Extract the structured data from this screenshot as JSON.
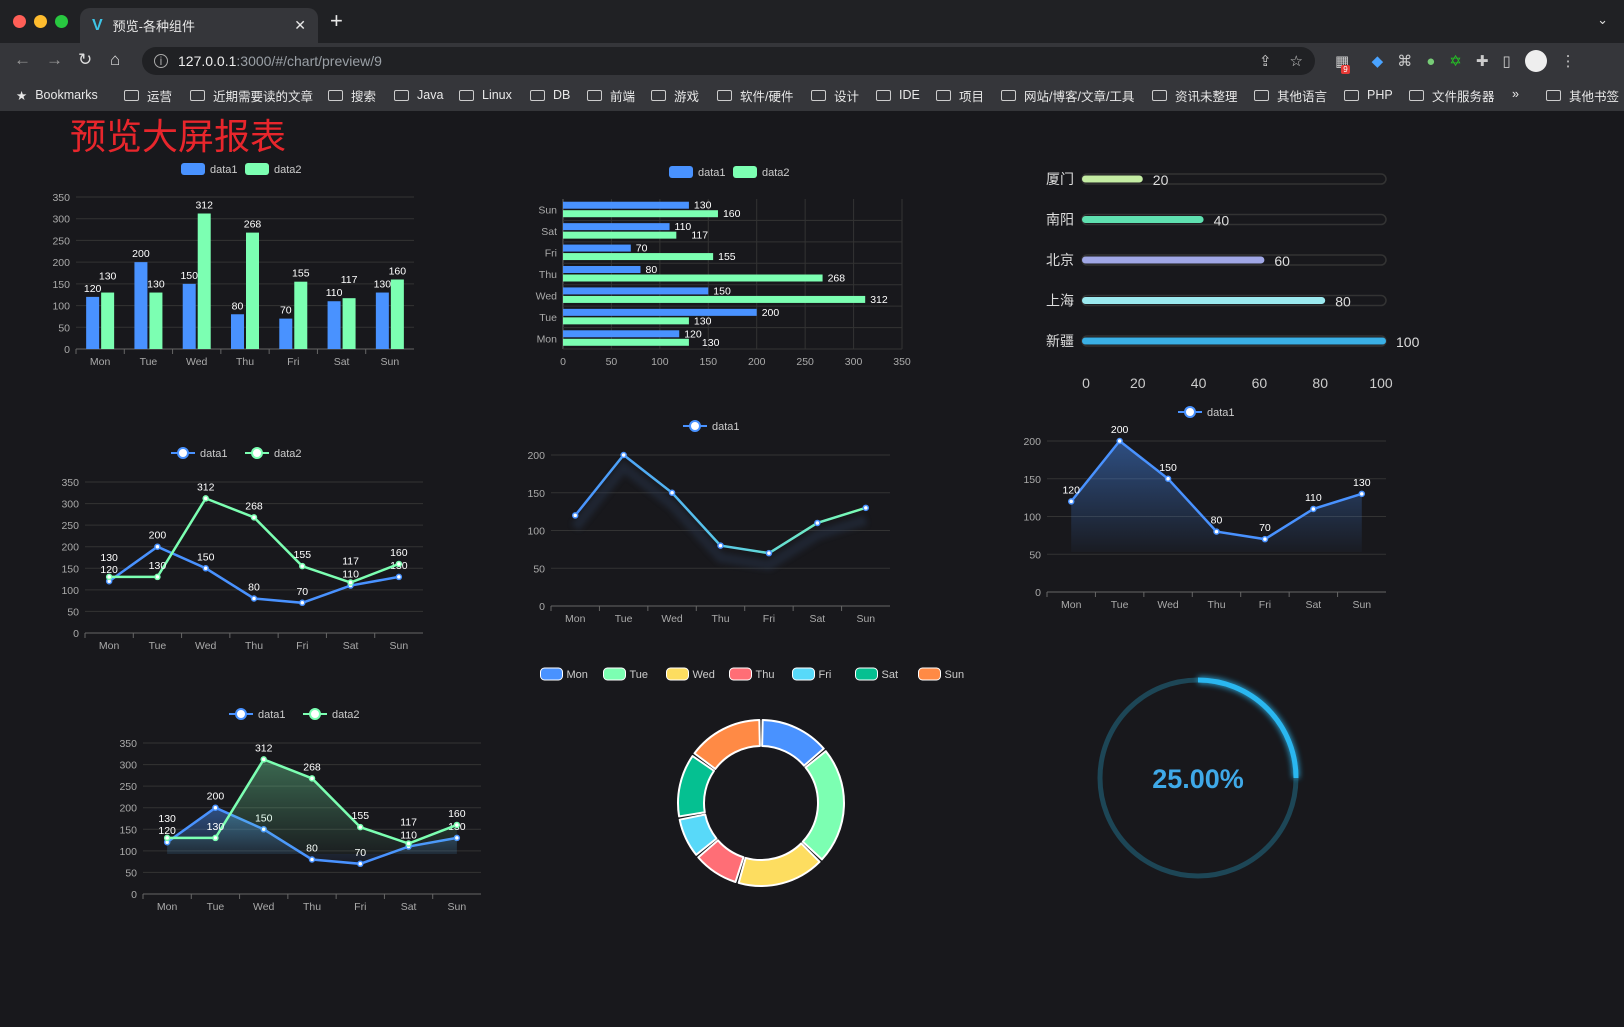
{
  "browser": {
    "tab_title": "预览-各种组件",
    "url_host": "127.0.0.1",
    "url_rest": ":3000/#/chart/preview/9",
    "ext_badge": "9",
    "bookmarks": [
      "Bookmarks",
      "运营",
      "近期需要读的文章",
      "搜索",
      "Java",
      "Linux",
      "DB",
      "前端",
      "游戏",
      "软件/硬件",
      "设计",
      "IDE",
      "项目",
      "网站/博客/文章/工具",
      "资讯未整理",
      "其他语言",
      "PHP",
      "文件服务器"
    ],
    "more": "»",
    "other_bookmarks": "其他书签"
  },
  "page": {
    "title": "预览大屏报表"
  },
  "colors": {
    "data1": "#4992ff",
    "data2": "#7cffb2",
    "gauge": "#2ab7f0",
    "title": "#e8262c"
  },
  "chart_data": [
    {
      "id": "bar",
      "type": "bar",
      "legend": [
        "data1",
        "data2"
      ],
      "categories": [
        "Mon",
        "Tue",
        "Wed",
        "Thu",
        "Fri",
        "Sat",
        "Sun"
      ],
      "series": [
        {
          "name": "data1",
          "values": [
            120,
            200,
            150,
            80,
            70,
            110,
            130
          ]
        },
        {
          "name": "data2",
          "values": [
            130,
            130,
            312,
            268,
            155,
            117,
            160
          ]
        }
      ],
      "ylim": [
        0,
        350
      ],
      "grid": true,
      "legend_position": "top"
    },
    {
      "id": "hbar",
      "type": "bar",
      "orientation": "horizontal",
      "legend": [
        "data1",
        "data2"
      ],
      "categories": [
        "Mon",
        "Tue",
        "Wed",
        "Thu",
        "Fri",
        "Sat",
        "Sun"
      ],
      "series": [
        {
          "name": "data1",
          "values": [
            120,
            200,
            150,
            80,
            70,
            110,
            130
          ]
        },
        {
          "name": "data2",
          "values": [
            130,
            130,
            312,
            268,
            155,
            117,
            160
          ]
        }
      ],
      "xlim": [
        0,
        350
      ],
      "grid": true,
      "legend_position": "top"
    },
    {
      "id": "progress",
      "type": "bar",
      "orientation": "horizontal",
      "categories": [
        "厦门",
        "南阳",
        "北京",
        "上海",
        "新疆"
      ],
      "values": [
        20,
        40,
        60,
        80,
        100
      ],
      "colors": [
        "#c4eca3",
        "#5fe0b0",
        "#a0a7e6",
        "#9be9ef",
        "#3ab0e6"
      ],
      "xlim": [
        0,
        100
      ],
      "xticks": [
        0,
        20,
        40,
        60,
        80,
        100
      ]
    },
    {
      "id": "line2",
      "type": "line",
      "legend": [
        "data1",
        "data2"
      ],
      "categories": [
        "Mon",
        "Tue",
        "Wed",
        "Thu",
        "Fri",
        "Sat",
        "Sun"
      ],
      "series": [
        {
          "name": "data1",
          "values": [
            120,
            200,
            150,
            80,
            70,
            110,
            130
          ]
        },
        {
          "name": "data2",
          "values": [
            130,
            130,
            312,
            268,
            155,
            117,
            160
          ]
        }
      ],
      "ylim": [
        0,
        350
      ],
      "grid": true,
      "legend_position": "top"
    },
    {
      "id": "linegrad",
      "type": "line",
      "legend": [
        "data1"
      ],
      "categories": [
        "Mon",
        "Tue",
        "Wed",
        "Thu",
        "Fri",
        "Sat",
        "Sun"
      ],
      "series": [
        {
          "name": "data1",
          "values": [
            120,
            200,
            150,
            80,
            70,
            110,
            130
          ]
        }
      ],
      "ylim": [
        0,
        200
      ],
      "grid": true,
      "legend_position": "top"
    },
    {
      "id": "area1",
      "type": "area",
      "legend": [
        "data1"
      ],
      "categories": [
        "Mon",
        "Tue",
        "Wed",
        "Thu",
        "Fri",
        "Sat",
        "Sun"
      ],
      "series": [
        {
          "name": "data1",
          "values": [
            120,
            200,
            150,
            80,
            70,
            110,
            130
          ]
        }
      ],
      "ylim": [
        0,
        200
      ],
      "grid": true,
      "legend_position": "top"
    },
    {
      "id": "area2",
      "type": "area",
      "legend": [
        "data1",
        "data2"
      ],
      "categories": [
        "Mon",
        "Tue",
        "Wed",
        "Thu",
        "Fri",
        "Sat",
        "Sun"
      ],
      "series": [
        {
          "name": "data1",
          "values": [
            120,
            200,
            150,
            80,
            70,
            110,
            130
          ]
        },
        {
          "name": "data2",
          "values": [
            130,
            130,
            312,
            268,
            155,
            117,
            160
          ]
        }
      ],
      "ylim": [
        0,
        350
      ],
      "grid": true,
      "legend_position": "top"
    },
    {
      "id": "donut",
      "type": "pie",
      "categories": [
        "Mon",
        "Tue",
        "Wed",
        "Thu",
        "Fri",
        "Sat",
        "Sun"
      ],
      "values": [
        120,
        200,
        150,
        80,
        70,
        110,
        130
      ],
      "colors": [
        "#4992ff",
        "#7cffb2",
        "#fddd60",
        "#ff6e76",
        "#58d9f9",
        "#05c091",
        "#ff8a45"
      ],
      "legend_position": "top"
    },
    {
      "id": "gauge",
      "type": "gauge",
      "value": 25,
      "label": "25.00%"
    }
  ]
}
